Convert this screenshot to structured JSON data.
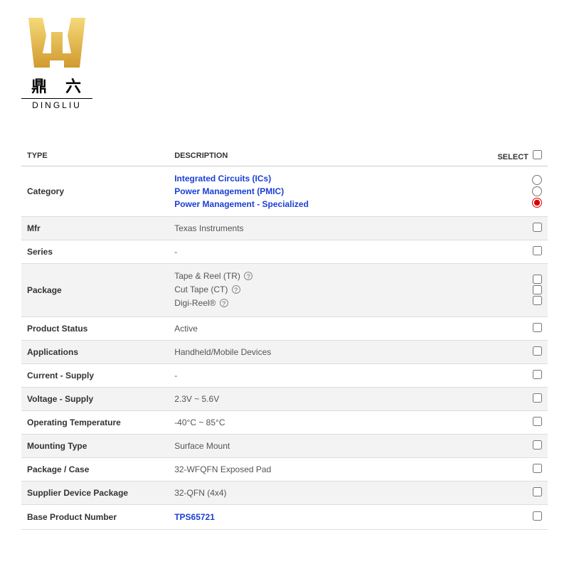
{
  "logo": {
    "cn": "鼎 六",
    "en": "DINGLIU",
    "fill_top": "#f5d97a",
    "fill_bottom": "#d19a2e"
  },
  "headers": {
    "type": "TYPE",
    "description": "DESCRIPTION",
    "select": "SELECT"
  },
  "rows": [
    {
      "type": "Category",
      "desc_kind": "links",
      "links": [
        "Integrated Circuits (ICs)",
        "Power Management (PMIC)",
        "Power Management - Specialized"
      ],
      "select_kind": "radio3",
      "shaded": false
    },
    {
      "type": "Mfr",
      "desc_kind": "text",
      "text": "Texas Instruments",
      "select_kind": "checkbox",
      "shaded": true
    },
    {
      "type": "Series",
      "desc_kind": "text",
      "text": "-",
      "select_kind": "checkbox",
      "shaded": false
    },
    {
      "type": "Package",
      "desc_kind": "help_lines",
      "help_lines": [
        "Tape & Reel (TR)",
        "Cut Tape (CT)",
        "Digi-Reel®"
      ],
      "select_kind": "checkbox3",
      "shaded": true
    },
    {
      "type": "Product Status",
      "desc_kind": "text",
      "text": "Active",
      "select_kind": "checkbox",
      "shaded": false
    },
    {
      "type": "Applications",
      "desc_kind": "text",
      "text": "Handheld/Mobile Devices",
      "select_kind": "checkbox",
      "shaded": true
    },
    {
      "type": "Current - Supply",
      "desc_kind": "text",
      "text": "-",
      "select_kind": "checkbox",
      "shaded": false
    },
    {
      "type": "Voltage - Supply",
      "desc_kind": "text",
      "text": "2.3V ~ 5.6V",
      "select_kind": "checkbox",
      "shaded": true
    },
    {
      "type": "Operating Temperature",
      "desc_kind": "text",
      "text": "-40°C ~ 85°C",
      "select_kind": "checkbox",
      "shaded": false
    },
    {
      "type": "Mounting Type",
      "desc_kind": "text",
      "text": "Surface Mount",
      "select_kind": "checkbox",
      "shaded": true
    },
    {
      "type": "Package / Case",
      "desc_kind": "text",
      "text": "32-WFQFN Exposed Pad",
      "select_kind": "checkbox",
      "shaded": false
    },
    {
      "type": "Supplier Device Package",
      "desc_kind": "text",
      "text": "32-QFN (4x4)",
      "select_kind": "checkbox",
      "shaded": true
    },
    {
      "type": "Base Product Number",
      "desc_kind": "link1",
      "link": "TPS65721",
      "select_kind": "checkbox",
      "shaded": false
    }
  ]
}
